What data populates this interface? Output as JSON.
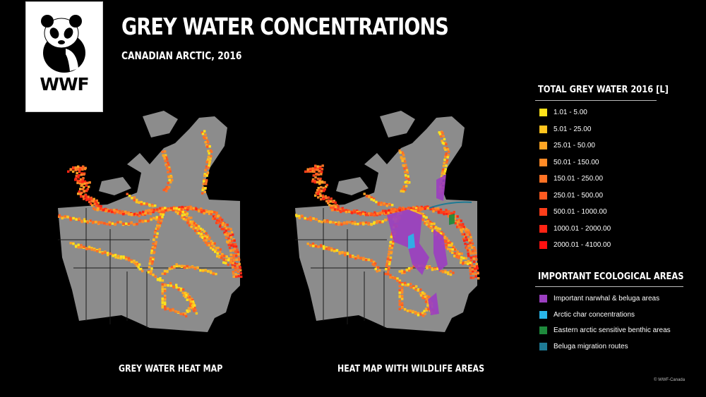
{
  "logo": {
    "text": "WWF",
    "icon": "panda-icon"
  },
  "header": {
    "title": "GREY WATER CONCENTRATIONS",
    "subtitle": "CANADIAN ARCTIC, 2016"
  },
  "maps": [
    {
      "caption": "GREY WATER HEAT MAP",
      "wildlife": false
    },
    {
      "caption": "HEAT MAP WITH WILDLIFE AREAS",
      "wildlife": true
    }
  ],
  "legend_grey_water": {
    "title": "TOTAL GREY WATER 2016 [L]",
    "items": [
      {
        "label": "1.01 - 5.00",
        "color": "#ffe21a"
      },
      {
        "label": "5.01 - 25.00",
        "color": "#ffc41e"
      },
      {
        "label": "25.01 - 50.00",
        "color": "#ffa524"
      },
      {
        "label": "50.01 - 150.00",
        "color": "#ff8a26"
      },
      {
        "label": "150.01 - 250.00",
        "color": "#ff7224"
      },
      {
        "label": "250.01 - 500.00",
        "color": "#ff5a20"
      },
      {
        "label": "500.01 - 1000.00",
        "color": "#ff3e1a"
      },
      {
        "label": "1000.01 - 2000.00",
        "color": "#ff2414"
      },
      {
        "label": "2000.01 - 4100.00",
        "color": "#ff1010"
      }
    ]
  },
  "legend_ecological": {
    "title": "IMPORTANT ECOLOGICAL AREAS",
    "items": [
      {
        "label": "Important narwhal & beluga areas",
        "color": "#9b3fc0"
      },
      {
        "label": "Arctic char concentrations",
        "color": "#29b5e8"
      },
      {
        "label": "Eastern arctic sensitive benthic areas",
        "color": "#1e8a3c"
      },
      {
        "label": "Beluga migration routes",
        "color": "#1e7a94"
      }
    ]
  },
  "credit": "© WWF-Canada",
  "colors": {
    "land": "#8c8c8c",
    "boundary": "#1a1a1a",
    "background": "#000000"
  }
}
